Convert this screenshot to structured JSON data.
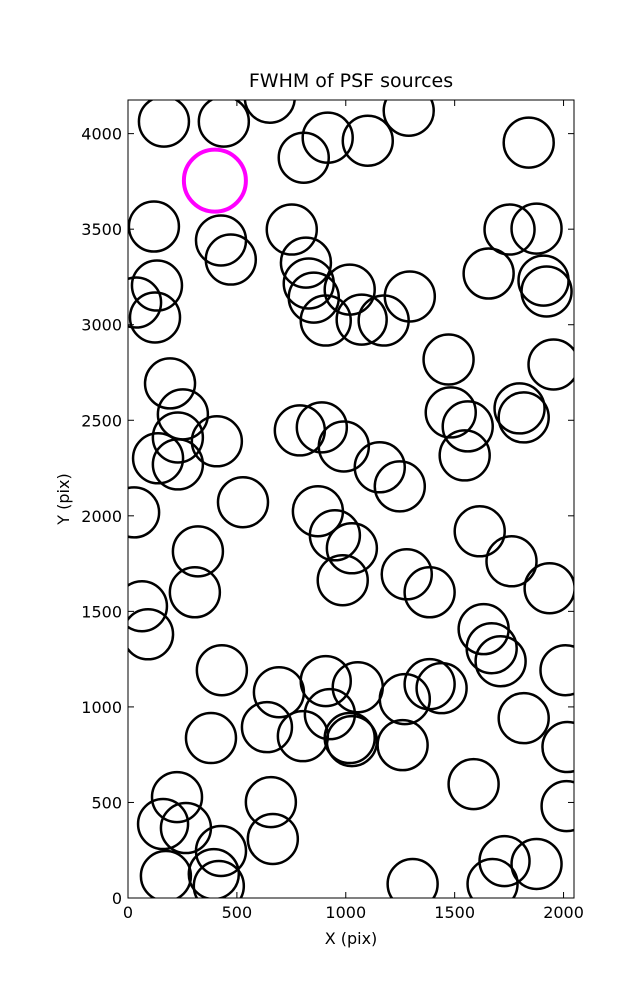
{
  "chart_data": {
    "type": "scatter",
    "title": "FWHM of PSF sources",
    "x_label": "X (pix)",
    "y_label": "Y (pix)",
    "xlim": [
      0,
      2048
    ],
    "ylim": [
      0,
      4176
    ],
    "xticks": [
      0,
      500,
      1000,
      1500,
      2000
    ],
    "yticks": [
      0,
      500,
      1000,
      1500,
      2000,
      2500,
      3000,
      3500,
      4000
    ],
    "grid": false,
    "series": [
      {
        "color": "#000000",
        "x": [
          165,
          440,
          651,
          917,
          1101,
          1289,
          807,
          1840,
          119,
          427,
          472,
          752,
          817,
          830,
          853,
          1018,
          908,
          1073,
          1174,
          1294,
          37,
          133,
          124,
          1656,
          1752,
          1876,
          1908,
          1922,
          1954,
          1472,
          193,
          252,
          229,
          138,
          229,
          408,
          789,
          890,
          991,
          1156,
          1248,
          1482,
          1560,
          1546,
          1798,
          1817,
          28,
          528,
          872,
          950,
          1028,
          986,
          321,
          307,
          64,
          92,
          1280,
          1385,
          1615,
          1761,
          1936,
          1633,
          1670,
          1711,
          2009,
          431,
          693,
          908,
          1055,
          1271,
          1385,
          1440,
          927,
          1018,
          1028,
          638,
          803,
          381,
          1261,
          1817,
          2018,
          1587,
          225,
          161,
          266,
          656,
          665,
          174,
          427,
          394,
          417,
          1307,
          1729,
          1876,
          1674,
          2014
        ],
        "values": [
          4063,
          4063,
          4188,
          3979,
          3963,
          4120,
          3874,
          3953,
          3514,
          3441,
          3341,
          3498,
          3325,
          3216,
          3142,
          3184,
          3022,
          3027,
          3022,
          3148,
          3116,
          3205,
          3038,
          3268,
          3498,
          3503,
          3231,
          3174,
          2792,
          2818,
          2693,
          2531,
          2410,
          2301,
          2269,
          2390,
          2447,
          2463,
          2363,
          2254,
          2154,
          2541,
          2468,
          2316,
          2562,
          2515,
          2018,
          2071,
          2024,
          1898,
          1830,
          1663,
          1814,
          1600,
          1527,
          1380,
          1694,
          1600,
          1919,
          1762,
          1621,
          1407,
          1307,
          1239,
          1192,
          1192,
          1077,
          1135,
          1103,
          1041,
          1119,
          1098,
          962,
          837,
          821,
          894,
          847,
          837,
          800,
          941,
          790,
          596,
          528,
          387,
          366,
          502,
          309,
          115,
          246,
          125,
          63,
          73,
          193,
          178,
          73,
          481
        ]
      },
      {
        "color": "#ff00ff",
        "x": [
          399
        ],
        "values": [
          3754
        ]
      }
    ]
  }
}
